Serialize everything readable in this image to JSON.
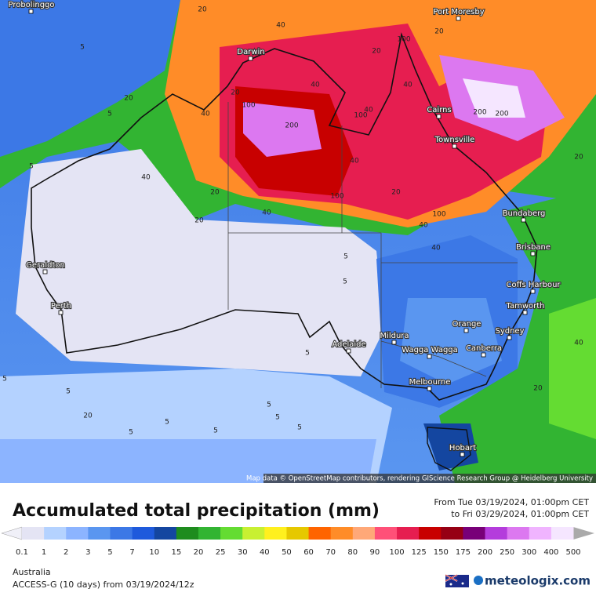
{
  "map": {
    "cities": [
      "Probolinggo",
      "Port Moresby",
      "Darwin",
      "Cairns",
      "Townsville",
      "Bundaberg",
      "Brisbane",
      "Coffs Harbour",
      "Tamworth",
      "Sydney",
      "Orange",
      "Canberra",
      "Wagga Wagga",
      "Mildura",
      "Adelaide",
      "Melbourne",
      "Hobart",
      "Perth",
      "Geraldton"
    ],
    "contour_labels": [
      20,
      40,
      20,
      40,
      100,
      40,
      40,
      200,
      100,
      40,
      20,
      100,
      200,
      200,
      20,
      100,
      20,
      40,
      40,
      5,
      5,
      5,
      40,
      100,
      40,
      20,
      20,
      40,
      20,
      5,
      5,
      5,
      5,
      5,
      5,
      5,
      5,
      5,
      5,
      5,
      20,
      20,
      40,
      20
    ],
    "attribution": "Map data © OpenStreetMap contributors, rendering GIScience Research Group @ Heidelberg University"
  },
  "header": {
    "title": "Accumulated total precipitation (mm)",
    "from": "From Tue 03/19/2024, 01:00pm CET",
    "to": "to Fri 03/29/2024, 01:00pm CET"
  },
  "legend": {
    "ticks": [
      0.1,
      1,
      2,
      3,
      5,
      7,
      10,
      15,
      20,
      25,
      30,
      40,
      50,
      60,
      70,
      80,
      90,
      100,
      125,
      150,
      175,
      200,
      250,
      300,
      400,
      500
    ],
    "colors": [
      "#e4e4f4",
      "#b4d2ff",
      "#8cb4ff",
      "#5a96f0",
      "#3c78e6",
      "#1e5adc",
      "#1446a0",
      "#1e8c1e",
      "#32b432",
      "#64dc32",
      "#c8f032",
      "#fff01e",
      "#e6c800",
      "#ff6400",
      "#ff8c28",
      "#ffa878",
      "#ff5078",
      "#e61e50",
      "#c80000",
      "#960014",
      "#780078",
      "#b43cdc",
      "#dc78f0",
      "#f0b4ff",
      "#f5e6ff"
    ]
  },
  "footer": {
    "region": "Australia",
    "model": "ACCESS-G (10 days) from 03/19/2024/12z",
    "brand": "meteologix.com"
  }
}
